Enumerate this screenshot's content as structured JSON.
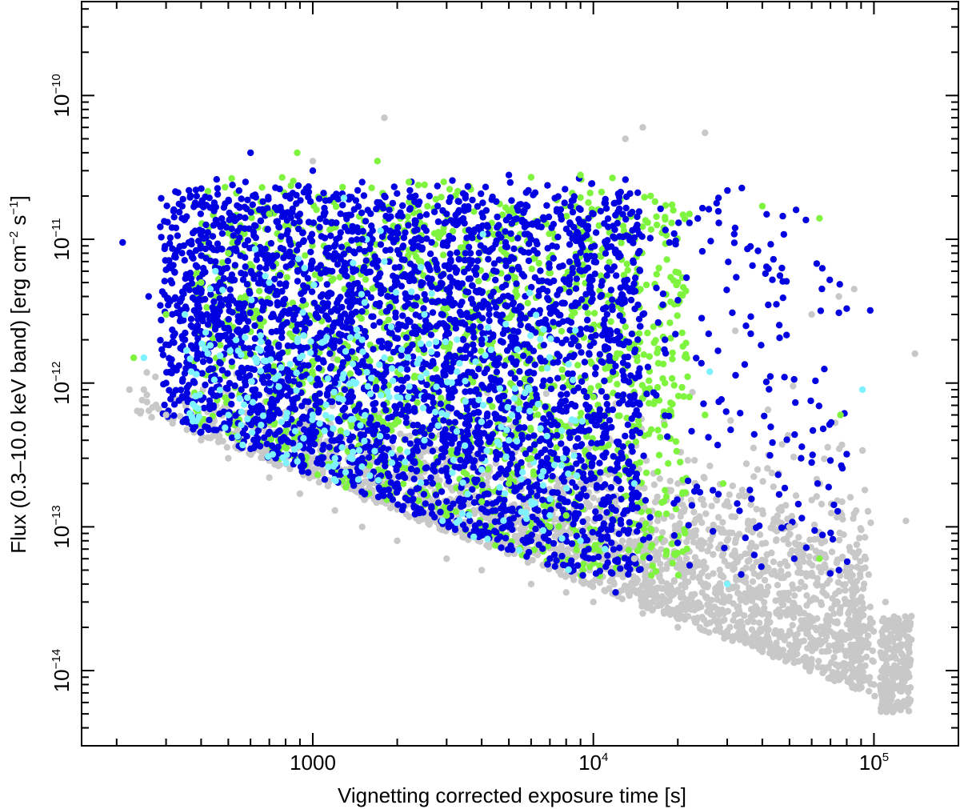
{
  "chart_data": {
    "type": "scatter",
    "title": "",
    "xlabel": "Vignetting corrected exposure time [s]",
    "ylabel": {
      "text": "Flux (0.3–10.0 keV band) [erg cm",
      "sup1": "−2",
      "mid": " s",
      "sup2": "−1",
      "end": "]"
    },
    "xscale": "log",
    "yscale": "log",
    "xlim": [
      150,
      200000
    ],
    "ylim": [
      3e-15,
      4.5e-10
    ],
    "grid": false,
    "legend": "none",
    "x_ticks": [
      {
        "value": 1000,
        "base": "1000",
        "exp": ""
      },
      {
        "value": 10000,
        "base": "10",
        "exp": "4"
      },
      {
        "value": 100000,
        "base": "10",
        "exp": "5"
      }
    ],
    "y_ticks": [
      {
        "value": 1e-14,
        "base": "10",
        "exp": "−14"
      },
      {
        "value": 1e-13,
        "base": "10",
        "exp": "−13"
      },
      {
        "value": 1e-12,
        "base": "10",
        "exp": "−12"
      },
      {
        "value": 1e-11,
        "base": "10",
        "exp": "−11"
      },
      {
        "value": 1e-10,
        "base": "10",
        "exp": "−10"
      }
    ],
    "series": [
      {
        "color": "#c8c8c8",
        "points": [
          [
            250,
            9e-13
          ],
          [
            300,
            6e-13
          ],
          [
            400,
            4e-13
          ],
          [
            500,
            3e-13
          ],
          [
            700,
            2.2e-13
          ],
          [
            900,
            1.7e-13
          ],
          [
            1200,
            1.3e-13
          ],
          [
            1500,
            1e-13
          ],
          [
            2000,
            8e-14
          ],
          [
            3000,
            6e-14
          ],
          [
            4000,
            5e-14
          ],
          [
            6000,
            4e-14
          ],
          [
            8000,
            3.5e-14
          ],
          [
            10000,
            3e-14
          ],
          [
            15000,
            2.5e-14
          ],
          [
            20000,
            2e-14
          ],
          [
            30000,
            1.8e-14
          ],
          [
            40000,
            1.5e-14
          ],
          [
            60000,
            1.2e-14
          ],
          [
            70000,
            9e-15
          ],
          [
            80000,
            1.1e-14
          ],
          [
            100000,
            8e-15
          ],
          [
            120000,
            9e-15
          ],
          [
            140000,
            1.6e-12
          ],
          [
            13000,
            5e-11
          ],
          [
            15000,
            6e-11
          ],
          [
            25000,
            5.5e-11
          ],
          [
            1800,
            7e-11
          ],
          [
            1000,
            3.5e-11
          ],
          [
            9000,
            2e-13
          ],
          [
            12000,
            1.5e-13
          ],
          [
            14000,
            6e-14
          ],
          [
            18000,
            8e-14
          ],
          [
            25000,
            4e-14
          ],
          [
            35000,
            3e-14
          ],
          [
            45000,
            2.5e-14
          ],
          [
            55000,
            2e-14
          ],
          [
            65000,
            1.8e-14
          ],
          [
            75000,
            1.4e-14
          ],
          [
            90000,
            3e-14
          ],
          [
            110000,
            3e-14
          ],
          [
            130000,
            1.1e-13
          ],
          [
            50000,
            1e-13
          ],
          [
            40000,
            1.3e-13
          ],
          [
            30000,
            1.5e-13
          ],
          [
            20000,
            2e-13
          ],
          [
            75000,
            4e-12
          ],
          [
            60000,
            3e-12
          ],
          [
            85000,
            4.5e-12
          ]
        ]
      },
      {
        "color": "#7ef43e",
        "points": [
          [
            880,
            4e-11
          ],
          [
            1700,
            3.5e-11
          ],
          [
            2200,
            2.5e-11
          ],
          [
            6000,
            2.7e-11
          ],
          [
            9000,
            2.8e-11
          ],
          [
            16000,
            2e-11
          ],
          [
            19000,
            1.3e-11
          ],
          [
            22000,
            1.5e-11
          ],
          [
            40000,
            1.7e-11
          ],
          [
            64000,
            1.4e-11
          ],
          [
            20000,
            5e-12
          ],
          [
            15000,
            3e-12
          ],
          [
            12000,
            1.5e-12
          ],
          [
            10000,
            8e-13
          ],
          [
            8000,
            5e-13
          ],
          [
            6000,
            3e-13
          ],
          [
            5000,
            2e-13
          ],
          [
            4000,
            1.5e-13
          ],
          [
            3000,
            1.2e-13
          ],
          [
            7000,
            1e-13
          ],
          [
            8000,
            1.2e-13
          ],
          [
            230,
            1.5e-12
          ],
          [
            300,
            3e-12
          ],
          [
            400,
            5e-12
          ],
          [
            500,
            8e-12
          ],
          [
            700,
            1.5e-11
          ],
          [
            76000,
            6e-13
          ],
          [
            64000,
            6e-14
          ],
          [
            29000,
            2e-13
          ],
          [
            25000,
            6e-13
          ],
          [
            18000,
            1e-12
          ],
          [
            22000,
            8e-13
          ]
        ]
      },
      {
        "color": "#0000e0",
        "points": [
          [
            210,
            9.5e-12
          ],
          [
            260,
            4e-12
          ],
          [
            300,
            1e-12
          ],
          [
            350,
            2e-12
          ],
          [
            450,
            7e-12
          ],
          [
            600,
            4e-11
          ],
          [
            800,
            2e-11
          ],
          [
            900,
            1.5e-11
          ],
          [
            1000,
            3e-11
          ],
          [
            1200,
            8e-12
          ],
          [
            1500,
            1e-11
          ],
          [
            1800,
            2e-11
          ],
          [
            2000,
            5e-12
          ],
          [
            2500,
            3e-12
          ],
          [
            3000,
            1.5e-11
          ],
          [
            3500,
            8e-12
          ],
          [
            4000,
            2e-12
          ],
          [
            5000,
            2.8e-11
          ],
          [
            6000,
            1e-11
          ],
          [
            7000,
            5e-12
          ],
          [
            8000,
            2e-12
          ],
          [
            10000,
            1.5e-11
          ],
          [
            12000,
            8e-12
          ],
          [
            15000,
            3e-12
          ],
          [
            18000,
            2e-12
          ],
          [
            22000,
            1.3e-11
          ],
          [
            28000,
            1.3e-11
          ],
          [
            32000,
            1.2e-11
          ],
          [
            35000,
            2.5e-12
          ],
          [
            42000,
            3.5e-12
          ],
          [
            48000,
            1.1e-12
          ],
          [
            55000,
            3e-13
          ],
          [
            60000,
            2.8e-13
          ],
          [
            63000,
            2e-13
          ],
          [
            80000,
            3.2e-13
          ],
          [
            97000,
            3.2e-12
          ],
          [
            75000,
            5e-14
          ],
          [
            52000,
            6e-14
          ],
          [
            1000,
            5e-13
          ],
          [
            1500,
            3e-13
          ],
          [
            2000,
            2e-13
          ],
          [
            3000,
            1.5e-13
          ],
          [
            4000,
            3e-13
          ],
          [
            5000,
            1e-13
          ],
          [
            6000,
            8e-14
          ],
          [
            7000,
            6e-14
          ],
          [
            12000,
            3.5e-14
          ],
          [
            10000,
            6e-14
          ],
          [
            700,
            1e-12
          ],
          [
            500,
            2e-12
          ],
          [
            400,
            3e-12
          ],
          [
            1200,
            1e-12
          ],
          [
            1500,
            2e-12
          ],
          [
            2500,
            8e-13
          ],
          [
            3500,
            1.5e-12
          ],
          [
            4500,
            6e-13
          ]
        ]
      },
      {
        "color": "#7ff2ff",
        "points": [
          [
            250,
            1.5e-12
          ],
          [
            350,
            3e-12
          ],
          [
            450,
            6e-12
          ],
          [
            700,
            5e-12
          ],
          [
            900,
            1.5e-12
          ],
          [
            1000,
            6e-13
          ],
          [
            1200,
            3e-13
          ],
          [
            1500,
            2e-12
          ],
          [
            1800,
            1.5e-12
          ],
          [
            2000,
            8e-13
          ],
          [
            2500,
            4e-13
          ],
          [
            3000,
            6e-13
          ],
          [
            4000,
            2.5e-13
          ],
          [
            5000,
            4e-13
          ],
          [
            6000,
            1.5e-13
          ],
          [
            7000,
            1.2e-13
          ],
          [
            9000,
            8e-14
          ],
          [
            11000,
            7e-14
          ],
          [
            14000,
            2e-13
          ],
          [
            26000,
            1.2e-12
          ],
          [
            30000,
            4e-14
          ],
          [
            91000,
            9e-13
          ],
          [
            1800,
            7e-12
          ],
          [
            2500,
            3e-12
          ]
        ]
      }
    ],
    "clouds": [
      {
        "color": "#c8c8c8",
        "count": 2600,
        "region": "lower-band"
      },
      {
        "color": "#7ef43e",
        "count": 1500,
        "region": "upper"
      },
      {
        "color": "#0000e0",
        "count": 3400,
        "region": "upper"
      },
      {
        "color": "#7ff2ff",
        "count": 280,
        "region": "upper"
      }
    ]
  }
}
